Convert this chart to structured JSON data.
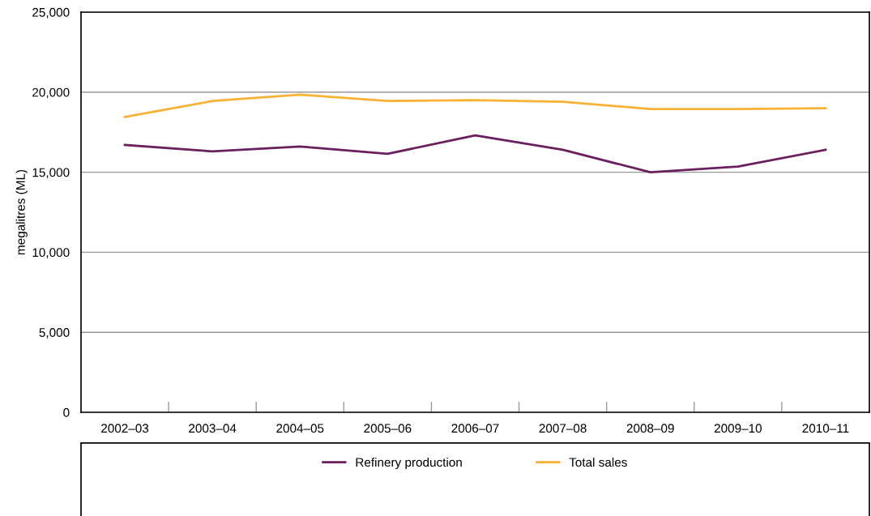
{
  "chart_data": {
    "type": "line",
    "ylabel": "megalitres (ML)",
    "categories": [
      "2002–03",
      "2003–04",
      "2004–05",
      "2005–06",
      "2006–07",
      "2007–08",
      "2008–09",
      "2009–10",
      "2010–11"
    ],
    "series": [
      {
        "name": "Refinery production",
        "color": "#6a1f5e",
        "values": [
          16700,
          16300,
          16600,
          16150,
          17300,
          16400,
          15000,
          15350,
          16400
        ]
      },
      {
        "name": "Total sales",
        "color": "#f9b233",
        "values": [
          18450,
          19450,
          19850,
          19450,
          19500,
          19400,
          18950,
          18950,
          19000
        ]
      }
    ],
    "ylim": [
      0,
      25000
    ],
    "yticks": [
      {
        "value": 0,
        "label": "0"
      },
      {
        "value": 5000,
        "label": "5,000"
      },
      {
        "value": 10000,
        "label": "10,000"
      },
      {
        "value": 15000,
        "label": "15,000"
      },
      {
        "value": 20000,
        "label": "20,000"
      },
      {
        "value": 25000,
        "label": "25,000"
      }
    ],
    "grid": "y",
    "legend": "bottom",
    "marker": "none",
    "line_style": "solid"
  }
}
